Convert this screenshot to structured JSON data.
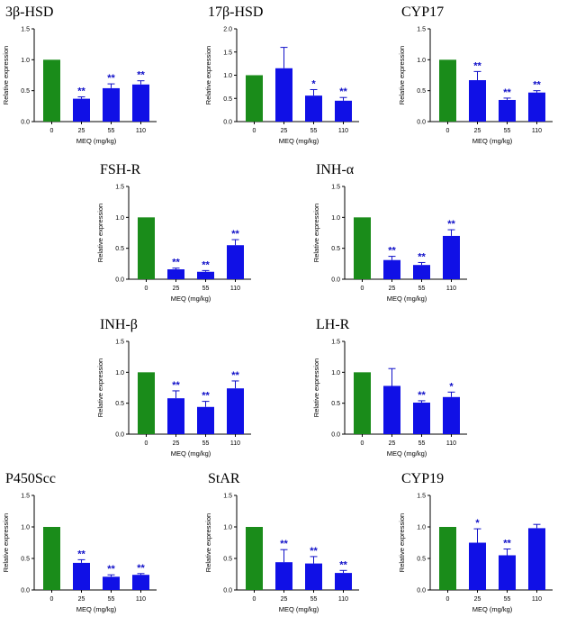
{
  "figure": {
    "colors": {
      "control": "#1a8c1a",
      "treatment": "#1010e6",
      "significance": "#1010c8",
      "axis": "#000000"
    },
    "ylabel": "Relative expression",
    "xlabel": "MEQ  (mg/kg)",
    "categories": [
      "0",
      "25",
      "55",
      "110"
    ]
  },
  "chart_data": [
    {
      "type": "bar",
      "title": "3β-HSD",
      "categories": [
        "0",
        "25",
        "55",
        "110"
      ],
      "values": [
        1.0,
        0.37,
        0.54,
        0.6
      ],
      "errors": [
        0,
        0.03,
        0.07,
        0.06
      ],
      "significance": [
        "",
        "**",
        "**",
        "**"
      ],
      "ylim": [
        0,
        1.5
      ],
      "yticks": [
        "0.0",
        "0.5",
        "1.0",
        "1.5"
      ],
      "ylabel": "Relative expression",
      "xlabel": "MEQ  (mg/kg)"
    },
    {
      "type": "bar",
      "title": "17β-HSD",
      "categories": [
        "0",
        "25",
        "55",
        "110"
      ],
      "values": [
        1.0,
        1.15,
        0.56,
        0.45
      ],
      "errors": [
        0,
        0.45,
        0.13,
        0.07
      ],
      "significance": [
        "",
        "",
        "*",
        "**"
      ],
      "ylim": [
        0,
        2.0
      ],
      "yticks": [
        "0.0",
        "0.5",
        "1.0",
        "1.5",
        "2.0"
      ],
      "ylabel": "Relative expression",
      "xlabel": "MEQ  (mg/kg)"
    },
    {
      "type": "bar",
      "title": "CYP17",
      "categories": [
        "0",
        "25",
        "55",
        "110"
      ],
      "values": [
        1.0,
        0.67,
        0.35,
        0.47
      ],
      "errors": [
        0,
        0.14,
        0.03,
        0.03
      ],
      "significance": [
        "",
        "**",
        "**",
        "**"
      ],
      "ylim": [
        0,
        1.5
      ],
      "yticks": [
        "0.0",
        "0.5",
        "1.0",
        "1.5"
      ],
      "ylabel": "Relative expression",
      "xlabel": "MEQ  (mg/kg)"
    },
    {
      "type": "bar",
      "title": "FSH-R",
      "categories": [
        "0",
        "25",
        "55",
        "110"
      ],
      "values": [
        1.0,
        0.16,
        0.12,
        0.55
      ],
      "errors": [
        0,
        0.02,
        0.02,
        0.09
      ],
      "significance": [
        "",
        "**",
        "**",
        "**"
      ],
      "ylim": [
        0,
        1.5
      ],
      "yticks": [
        "0.0",
        "0.5",
        "1.0",
        "1.5"
      ],
      "ylabel": "Relative expression",
      "xlabel": "MEQ  (mg/kg)"
    },
    {
      "type": "bar",
      "title": "INH-α",
      "categories": [
        "0",
        "25",
        "55",
        "110"
      ],
      "values": [
        1.0,
        0.31,
        0.23,
        0.7
      ],
      "errors": [
        0,
        0.06,
        0.04,
        0.1
      ],
      "significance": [
        "",
        "**",
        "**",
        "**"
      ],
      "ylim": [
        0,
        1.5
      ],
      "yticks": [
        "0.0",
        "0.5",
        "1.0",
        "1.5"
      ],
      "ylabel": "Relative expression",
      "xlabel": "MEQ  (mg/kg)"
    },
    {
      "type": "bar",
      "title": "INH-β",
      "categories": [
        "0",
        "25",
        "55",
        "110"
      ],
      "values": [
        1.0,
        0.58,
        0.44,
        0.74
      ],
      "errors": [
        0,
        0.12,
        0.09,
        0.12
      ],
      "significance": [
        "",
        "**",
        "**",
        "**"
      ],
      "ylim": [
        0,
        1.5
      ],
      "yticks": [
        "0.0",
        "0.5",
        "1.0",
        "1.5"
      ],
      "ylabel": "Relative expression",
      "xlabel": "MEQ  (mg/kg)"
    },
    {
      "type": "bar",
      "title": "LH-R",
      "categories": [
        "0",
        "25",
        "55",
        "110"
      ],
      "values": [
        1.0,
        0.78,
        0.51,
        0.6
      ],
      "errors": [
        0,
        0.28,
        0.03,
        0.08
      ],
      "significance": [
        "",
        "",
        "**",
        "*"
      ],
      "ylim": [
        0,
        1.5
      ],
      "yticks": [
        "0.0",
        "0.5",
        "1.0",
        "1.5"
      ],
      "ylabel": "Relative expression",
      "xlabel": "MEQ  (mg/kg)"
    },
    {
      "type": "bar",
      "title": "P450Scc",
      "categories": [
        "0",
        "25",
        "55",
        "110"
      ],
      "values": [
        1.0,
        0.43,
        0.21,
        0.24
      ],
      "errors": [
        0,
        0.05,
        0.03,
        0.02
      ],
      "significance": [
        "",
        "**",
        "**",
        "**"
      ],
      "ylim": [
        0,
        1.5
      ],
      "yticks": [
        "0.0",
        "0.5",
        "1.0",
        "1.5"
      ],
      "ylabel": "Relative expression",
      "xlabel": "MEQ  (mg/kg)"
    },
    {
      "type": "bar",
      "title": "StAR",
      "categories": [
        "0",
        "25",
        "55",
        "110"
      ],
      "values": [
        1.0,
        0.44,
        0.42,
        0.27
      ],
      "errors": [
        0,
        0.2,
        0.11,
        0.04
      ],
      "significance": [
        "",
        "**",
        "**",
        "**"
      ],
      "ylim": [
        0,
        1.5
      ],
      "yticks": [
        "0.0",
        "0.5",
        "1.0",
        "1.5"
      ],
      "ylabel": "Relative expression",
      "xlabel": "MEQ  (mg/kg)"
    },
    {
      "type": "bar",
      "title": "CYP19",
      "categories": [
        "0",
        "25",
        "55",
        "110"
      ],
      "values": [
        1.0,
        0.75,
        0.55,
        0.98
      ],
      "errors": [
        0,
        0.22,
        0.1,
        0.06
      ],
      "significance": [
        "",
        "*",
        "**",
        ""
      ],
      "ylim": [
        0,
        1.5
      ],
      "yticks": [
        "0.0",
        "0.5",
        "1.0",
        "1.5"
      ],
      "ylabel": "Relative expression",
      "xlabel": "MEQ  (mg/kg)"
    }
  ]
}
